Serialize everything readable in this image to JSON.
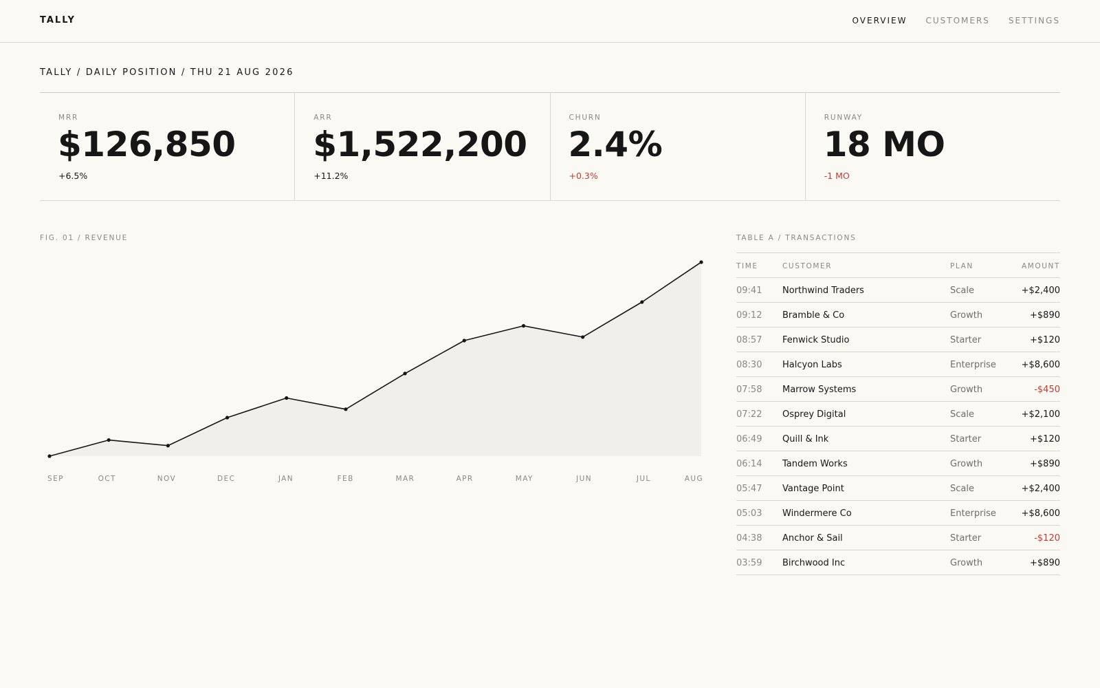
{
  "brand": "TALLY",
  "nav": [
    {
      "label": "OVERVIEW",
      "active": true
    },
    {
      "label": "CUSTOMERS",
      "active": false
    },
    {
      "label": "SETTINGS",
      "active": false
    }
  ],
  "breadcrumb": "TALLY / DAILY POSITION / THU 21 AUG 2026",
  "kpis": [
    {
      "label": "MRR",
      "value": "$126,850",
      "delta": "+6.5%",
      "negative": false
    },
    {
      "label": "ARR",
      "value": "$1,522,200",
      "delta": "+11.2%",
      "negative": false
    },
    {
      "label": "CHURN",
      "value": "2.4%",
      "delta": "+0.3%",
      "negative": true
    },
    {
      "label": "RUNWAY",
      "value": "18 MO",
      "delta": "-1 MO",
      "negative": true
    }
  ],
  "figure": {
    "title": "FIG. 01 / REVENUE"
  },
  "chart_data": {
    "type": "area",
    "x": [
      "SEP",
      "OCT",
      "NOV",
      "DEC",
      "JAN",
      "FEB",
      "MAR",
      "APR",
      "MAY",
      "JUN",
      "JUL",
      "AUG"
    ],
    "values": [
      0,
      23,
      15,
      55,
      83,
      67,
      118,
      165,
      186,
      170,
      220,
      277
    ],
    "ylim": [
      0,
      277
    ],
    "grid": false,
    "colors": {
      "line": "#161616",
      "fill": "#f0efea"
    }
  },
  "table": {
    "title": "TABLE A / TRANSACTIONS",
    "columns": [
      "TIME",
      "CUSTOMER",
      "PLAN",
      "AMOUNT"
    ],
    "rows": [
      {
        "time": "09:41",
        "customer": "Northwind Traders",
        "plan": "Scale",
        "amount": "+$2,400",
        "negative": false
      },
      {
        "time": "09:12",
        "customer": "Bramble & Co",
        "plan": "Growth",
        "amount": "+$890",
        "negative": false
      },
      {
        "time": "08:57",
        "customer": "Fenwick Studio",
        "plan": "Starter",
        "amount": "+$120",
        "negative": false
      },
      {
        "time": "08:30",
        "customer": "Halcyon Labs",
        "plan": "Enterprise",
        "amount": "+$8,600",
        "negative": false
      },
      {
        "time": "07:58",
        "customer": "Marrow Systems",
        "plan": "Growth",
        "amount": "-$450",
        "negative": true
      },
      {
        "time": "07:22",
        "customer": "Osprey Digital",
        "plan": "Scale",
        "amount": "+$2,100",
        "negative": false
      },
      {
        "time": "06:49",
        "customer": "Quill & Ink",
        "plan": "Starter",
        "amount": "+$120",
        "negative": false
      },
      {
        "time": "06:14",
        "customer": "Tandem Works",
        "plan": "Growth",
        "amount": "+$890",
        "negative": false
      },
      {
        "time": "05:47",
        "customer": "Vantage Point",
        "plan": "Scale",
        "amount": "+$2,400",
        "negative": false
      },
      {
        "time": "05:03",
        "customer": "Windermere Co",
        "plan": "Enterprise",
        "amount": "+$8,600",
        "negative": false
      },
      {
        "time": "04:38",
        "customer": "Anchor & Sail",
        "plan": "Starter",
        "amount": "-$120",
        "negative": true
      },
      {
        "time": "03:59",
        "customer": "Birchwood Inc",
        "plan": "Growth",
        "amount": "+$890",
        "negative": false
      }
    ]
  },
  "colors": {
    "negative": "#c33a2e",
    "muted": "#8a8882",
    "ink": "#161616",
    "background": "#faf9f4"
  }
}
